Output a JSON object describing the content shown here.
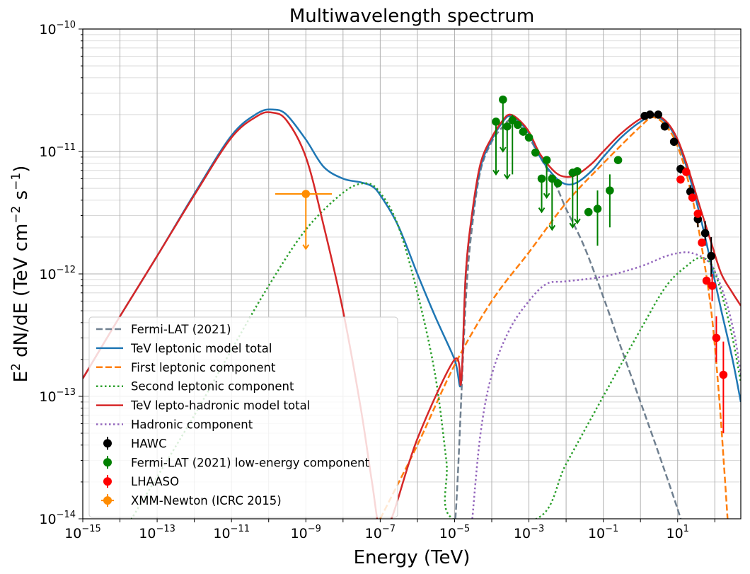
{
  "chart_data": {
    "type": "line",
    "title": "Multiwavelength spectrum",
    "xlabel": "Energy (TeV)",
    "ylabel_parts": [
      "E",
      "2",
      " dN/dE (TeV cm",
      "−2",
      " s",
      "−1",
      ")"
    ],
    "xscale": "log",
    "yscale": "log",
    "xlim": [
      1e-15,
      500.0
    ],
    "ylim": [
      1e-14,
      1e-10
    ],
    "grid": true,
    "legend_position": "lower-left",
    "x_ticks": [
      {
        "base": "10",
        "exp": "−15",
        "value": 1e-15
      },
      {
        "base": "10",
        "exp": "−13",
        "value": 1e-13
      },
      {
        "base": "10",
        "exp": "−11",
        "value": 1e-11
      },
      {
        "base": "10",
        "exp": "−9",
        "value": 1e-09
      },
      {
        "base": "10",
        "exp": "−7",
        "value": 1e-07
      },
      {
        "base": "10",
        "exp": "−5",
        "value": 1e-05
      },
      {
        "base": "10",
        "exp": "−3",
        "value": 0.001
      },
      {
        "base": "10",
        "exp": "−1",
        "value": 0.1
      },
      {
        "base": "10",
        "exp": "1",
        "value": 10
      }
    ],
    "y_ticks": [
      {
        "base": "10",
        "exp": "−14",
        "value": 1e-14
      },
      {
        "base": "10",
        "exp": "−13",
        "value": 1e-13
      },
      {
        "base": "10",
        "exp": "−12",
        "value": 1e-12
      },
      {
        "base": "10",
        "exp": "−11",
        "value": 1e-11
      },
      {
        "base": "10",
        "exp": "−10",
        "value": 1e-10
      }
    ],
    "lines": [
      {
        "name": "Fermi-LAT (2021)",
        "color": "#708090",
        "style": "dashed",
        "width": 2.5,
        "points": [
          [
            9e-06,
            5e-15
          ],
          [
            1.2e-05,
            2e-14
          ],
          [
            2e-05,
            6e-13
          ],
          [
            3e-05,
            2.5e-12
          ],
          [
            5e-05,
            7e-12
          ],
          [
            0.0001,
            1.2e-11
          ],
          [
            0.0002,
            1.6e-11
          ],
          [
            0.0003,
            1.8e-11
          ],
          [
            0.0005,
            1.7e-11
          ],
          [
            0.001,
            1.3e-11
          ],
          [
            0.002,
            9e-12
          ],
          [
            0.005,
            5.5e-12
          ],
          [
            0.01,
            3.4e-12
          ],
          [
            0.03,
            1.7e-12
          ],
          [
            0.1,
            6.5e-13
          ],
          [
            0.3,
            2.5e-13
          ],
          [
            1,
            9e-14
          ],
          [
            3,
            3.5e-14
          ],
          [
            10,
            1.2e-14
          ],
          [
            20,
            6e-15
          ]
        ]
      },
      {
        "name": "TeV leptonic model total",
        "color": "#1f77b4",
        "style": "solid",
        "width": 2.5,
        "points": [
          [
            1e-15,
            1.4e-13
          ],
          [
            1e-14,
            4.5e-13
          ],
          [
            1e-13,
            1.4e-12
          ],
          [
            1e-12,
            4.5e-12
          ],
          [
            1e-11,
            1.35e-11
          ],
          [
            5e-11,
            2.05e-11
          ],
          [
            1.3e-10,
            2.2e-11
          ],
          [
            3e-10,
            2e-11
          ],
          [
            1e-09,
            1.25e-11
          ],
          [
            3e-09,
            7.5e-12
          ],
          [
            1e-08,
            6e-12
          ],
          [
            3e-08,
            5.6e-12
          ],
          [
            6e-08,
            5.2e-12
          ],
          [
            1e-07,
            4.4e-12
          ],
          [
            3e-07,
            2.5e-12
          ],
          [
            1e-06,
            1e-12
          ],
          [
            3e-06,
            4.5e-13
          ],
          [
            1e-05,
            2e-13
          ],
          [
            1.5e-05,
            1.3e-13
          ],
          [
            2e-05,
            1e-12
          ],
          [
            3e-05,
            3e-12
          ],
          [
            5e-05,
            7.5e-12
          ],
          [
            0.0001,
            1.25e-11
          ],
          [
            0.0002,
            1.75e-11
          ],
          [
            0.0003,
            1.95e-11
          ],
          [
            0.0005,
            1.8e-11
          ],
          [
            0.001,
            1.4e-11
          ],
          [
            0.002,
            9e-12
          ],
          [
            0.005,
            6.2e-12
          ],
          [
            0.01,
            5.4e-12
          ],
          [
            0.02,
            5.6e-12
          ],
          [
            0.05,
            7e-12
          ],
          [
            0.1,
            9e-12
          ],
          [
            0.3,
            1.3e-11
          ],
          [
            1,
            1.75e-11
          ],
          [
            2.2,
            1.95e-11
          ],
          [
            5,
            1.7e-11
          ],
          [
            10,
            1.2e-11
          ],
          [
            20,
            6.5e-12
          ],
          [
            40,
            3e-12
          ],
          [
            80,
            1.2e-12
          ],
          [
            150,
            5e-13
          ],
          [
            300,
            2e-13
          ],
          [
            500,
            9e-14
          ]
        ]
      },
      {
        "name": "First leptonic component",
        "color": "#ff7f0e",
        "style": "dashed",
        "width": 2.5,
        "points": [
          [
            1e-07,
            1e-14
          ],
          [
            1e-06,
            4e-14
          ],
          [
            1e-05,
            1.8e-13
          ],
          [
            0.0001,
            6e-13
          ],
          [
            0.001,
            1.5e-12
          ],
          [
            0.01,
            3.8e-12
          ],
          [
            0.1,
            8e-12
          ],
          [
            1,
            1.6e-11
          ],
          [
            2.2,
            1.9e-11
          ],
          [
            5,
            1.6e-11
          ],
          [
            10,
            1.1e-11
          ],
          [
            20,
            5.5e-12
          ],
          [
            40,
            2e-12
          ],
          [
            80,
            5e-13
          ],
          [
            130,
            1e-13
          ],
          [
            180,
            2.5e-14
          ],
          [
            220,
            1e-14
          ]
        ]
      },
      {
        "name": "Second leptonic component",
        "color": "#2ca02c",
        "style": "dotted",
        "width": 2.5,
        "points": [
          [
            1e-14,
            7e-15
          ],
          [
            1e-13,
            2.2e-14
          ],
          [
            1e-12,
            7e-14
          ],
          [
            1e-11,
            2.4e-13
          ],
          [
            1e-10,
            8e-13
          ],
          [
            1e-09,
            2.3e-12
          ],
          [
            1e-08,
            4.6e-12
          ],
          [
            4e-08,
            5.5e-12
          ],
          [
            1e-07,
            4.6e-12
          ],
          [
            3e-07,
            2.5e-12
          ],
          [
            1e-06,
            7e-13
          ],
          [
            3e-06,
            1.5e-13
          ],
          [
            6e-06,
            3e-14
          ],
          [
            9e-06,
            1e-14
          ],
          [
            0.0016,
            1e-14
          ],
          [
            0.01,
            2.8e-14
          ],
          [
            0.1,
            1e-13
          ],
          [
            1,
            3.5e-13
          ],
          [
            5,
            8e-13
          ],
          [
            20,
            1.2e-12
          ],
          [
            40,
            1.35e-12
          ],
          [
            80,
            1.2e-12
          ],
          [
            150,
            7e-13
          ],
          [
            300,
            3e-13
          ],
          [
            500,
            1.3e-13
          ]
        ]
      },
      {
        "name": "TeV lepto-hadronic model total",
        "color": "#d62728",
        "style": "solid",
        "width": 2.5,
        "points": [
          [
            1e-15,
            1.4e-13
          ],
          [
            1e-14,
            4.5e-13
          ],
          [
            1e-13,
            1.4e-12
          ],
          [
            1e-12,
            4.4e-12
          ],
          [
            1e-11,
            1.3e-11
          ],
          [
            5e-11,
            1.95e-11
          ],
          [
            1.2e-10,
            2.08e-11
          ],
          [
            3e-10,
            1.8e-11
          ],
          [
            1e-09,
            9e-12
          ],
          [
            3e-09,
            2.5e-12
          ],
          [
            1e-08,
            5e-13
          ],
          [
            3e-08,
            8e-14
          ],
          [
            6e-08,
            2e-14
          ],
          [
            1e-07,
            8e-15
          ],
          [
            2e-07,
            1e-14
          ],
          [
            1e-06,
            4.5e-14
          ],
          [
            1e-05,
            2e-13
          ],
          [
            1.5e-05,
            1.3e-13
          ],
          [
            2e-05,
            1e-12
          ],
          [
            3e-05,
            3.2e-12
          ],
          [
            5e-05,
            8e-12
          ],
          [
            0.0001,
            1.3e-11
          ],
          [
            0.0002,
            1.8e-11
          ],
          [
            0.0003,
            2e-11
          ],
          [
            0.0005,
            1.85e-11
          ],
          [
            0.001,
            1.45e-11
          ],
          [
            0.002,
            9.5e-12
          ],
          [
            0.005,
            6.8e-12
          ],
          [
            0.01,
            6.2e-12
          ],
          [
            0.02,
            6.5e-12
          ],
          [
            0.05,
            8e-12
          ],
          [
            0.1,
            1e-11
          ],
          [
            0.3,
            1.4e-11
          ],
          [
            1,
            1.85e-11
          ],
          [
            2.2,
            2e-11
          ],
          [
            5,
            1.75e-11
          ],
          [
            10,
            1.25e-11
          ],
          [
            20,
            7e-12
          ],
          [
            40,
            3.5e-12
          ],
          [
            80,
            1.8e-12
          ],
          [
            150,
            1e-12
          ],
          [
            300,
            7e-13
          ],
          [
            500,
            5.5e-13
          ]
        ]
      },
      {
        "name": "Hadronic component",
        "color": "#9467bd",
        "style": "dotted",
        "width": 2.5,
        "points": [
          [
            3e-05,
            1e-14
          ],
          [
            5e-05,
            5e-14
          ],
          [
            0.0001,
            1.5e-13
          ],
          [
            0.0003,
            3.5e-13
          ],
          [
            0.001,
            6e-13
          ],
          [
            0.003,
            8.3e-13
          ],
          [
            0.01,
            8.7e-13
          ],
          [
            0.1,
            9.5e-13
          ],
          [
            1,
            1.15e-12
          ],
          [
            5,
            1.4e-12
          ],
          [
            15,
            1.5e-12
          ],
          [
            30,
            1.45e-12
          ],
          [
            60,
            1.3e-12
          ],
          [
            100,
            1.05e-12
          ],
          [
            200,
            6e-13
          ],
          [
            350,
            3e-13
          ],
          [
            500,
            1.5e-13
          ]
        ]
      }
    ],
    "points": [
      {
        "name": "HAWC",
        "color": "#000000",
        "data": [
          [
            1.3,
            1.95e-11,
            0,
            0
          ],
          [
            1.8,
            2e-11,
            0,
            0
          ],
          [
            3,
            2e-11,
            0,
            0
          ],
          [
            4.5,
            1.6e-11,
            0,
            0
          ],
          [
            8,
            1.2e-11,
            0,
            0
          ],
          [
            12,
            7.2e-12,
            6.6e-12,
            7.8e-12
          ],
          [
            22,
            4.7e-12,
            4.2e-12,
            5.3e-12
          ],
          [
            35,
            2.8e-12,
            2.4e-12,
            3.3e-12
          ],
          [
            55,
            2.15e-12,
            1.7e-12,
            2.7e-12
          ],
          [
            80,
            1.4e-12,
            9.5e-13,
            2e-12
          ]
        ]
      },
      {
        "name": "Fermi-LAT (2021) low-energy component",
        "color": "#008000",
        "ul_arrow": true,
        "data": [
          [
            0.00013,
            1.75e-11,
            6.5e-12,
            1.75e-11
          ],
          [
            0.0002,
            2.65e-11,
            1e-11,
            2.65e-11
          ],
          [
            0.00026,
            1.6e-11,
            6e-12,
            1.6e-11
          ],
          [
            0.00036,
            1.8e-11,
            6.5e-12,
            2e-11
          ],
          [
            0.0005,
            1.65e-11,
            0,
            0
          ],
          [
            0.0007,
            1.45e-11,
            0,
            0
          ],
          [
            0.001,
            1.3e-11,
            0,
            0
          ],
          [
            0.0015,
            9.8e-12,
            0,
            0
          ],
          [
            0.0022,
            6e-12,
            3.2e-12,
            6e-12
          ],
          [
            0.003,
            8.5e-12,
            4.2e-12,
            8.5e-12
          ],
          [
            0.0042,
            6e-12,
            2.3e-12,
            6e-12
          ],
          [
            0.006,
            5.5e-12,
            0,
            0
          ],
          [
            0.015,
            6.7e-12,
            2.4e-12,
            6.7e-12
          ],
          [
            0.02,
            6.9e-12,
            2.6e-12,
            6.9e-12
          ],
          [
            0.04,
            3.2e-12,
            0,
            0
          ],
          [
            0.07,
            3.4e-12,
            1.7e-12,
            4.8e-12
          ],
          [
            0.15,
            4.8e-12,
            2.4e-12,
            6.5e-12
          ],
          [
            0.25,
            8.5e-12,
            0,
            0
          ]
        ]
      },
      {
        "name": "LHAASO",
        "color": "#ff0000",
        "data": [
          [
            12,
            5.9e-12,
            0,
            0
          ],
          [
            17,
            6.8e-12,
            0,
            0
          ],
          [
            25,
            4.2e-12,
            0,
            0
          ],
          [
            35,
            3.1e-12,
            0,
            0
          ],
          [
            45,
            1.8e-12,
            0,
            0
          ],
          [
            60,
            8.8e-13,
            0,
            0
          ],
          [
            85,
            8e-13,
            6e-13,
            1e-12
          ],
          [
            110,
            3e-13,
            1.9e-13,
            4.5e-13
          ],
          [
            170,
            1.5e-13,
            5e-14,
            2.8e-13
          ]
        ]
      },
      {
        "name": "XMM-Newton (ICRC 2015)",
        "color": "#ff8c00",
        "ul_arrow": true,
        "xerr": true,
        "data": [
          [
            1e-09,
            4.5e-12,
            1.6e-12,
            4.5e-12,
            1.5e-10,
            5e-09
          ]
        ]
      }
    ]
  }
}
